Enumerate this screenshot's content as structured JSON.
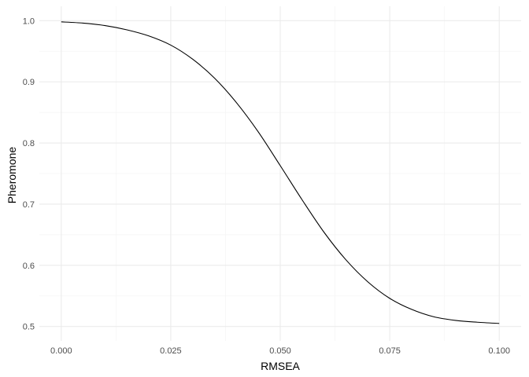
{
  "chart_data": {
    "type": "line",
    "title": "",
    "xlabel": "RMSEA",
    "ylabel": "Pheromone",
    "xlim": [
      0.0,
      0.1
    ],
    "ylim": [
      0.5,
      1.0
    ],
    "x_ticks": [
      0.0,
      0.025,
      0.05,
      0.075,
      0.1
    ],
    "x_tick_labels": [
      "0.000",
      "0.025",
      "0.050",
      "0.075",
      "0.100"
    ],
    "y_ticks": [
      0.5,
      0.6,
      0.7,
      0.8,
      0.9,
      1.0
    ],
    "y_tick_labels": [
      "0.5",
      "0.6",
      "0.7",
      "0.8",
      "0.9",
      "1.0"
    ],
    "grid": true,
    "legend": "none",
    "colors": {
      "line": "#000000",
      "grid_major": "#ebebeb",
      "grid_minor": "#f5f5f5"
    },
    "series": [
      {
        "x": [
          0.0,
          0.005,
          0.01,
          0.015,
          0.02,
          0.025,
          0.03,
          0.035,
          0.04,
          0.045,
          0.05,
          0.055,
          0.06,
          0.065,
          0.07,
          0.075,
          0.08,
          0.085,
          0.09,
          0.095,
          0.1
        ],
        "values": [
          0.998,
          0.996,
          0.992,
          0.985,
          0.975,
          0.96,
          0.937,
          0.906,
          0.866,
          0.818,
          0.763,
          0.707,
          0.654,
          0.609,
          0.573,
          0.546,
          0.528,
          0.516,
          0.51,
          0.507,
          0.505
        ]
      }
    ]
  }
}
